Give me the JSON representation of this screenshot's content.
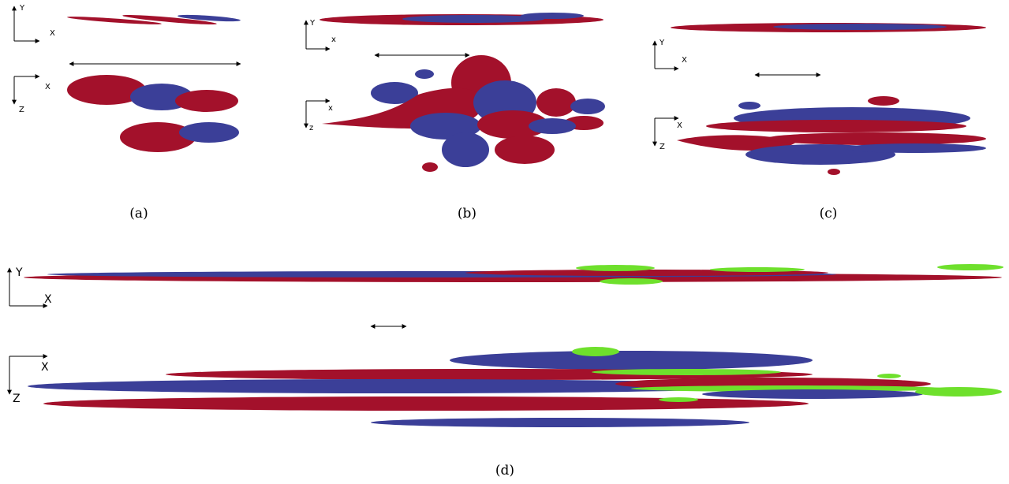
{
  "panels": [
    {
      "label": "(a)",
      "side_view": {
        "up": "Y",
        "right": "X"
      },
      "top_view": {
        "right": "X",
        "down": "Z"
      }
    },
    {
      "label": "(b)",
      "side_view": {
        "up": "Y",
        "right": "x"
      },
      "top_view": {
        "right": "x",
        "down": "z"
      }
    },
    {
      "label": "(c)",
      "side_view": {
        "up": "Y",
        "right": "X"
      },
      "top_view": {
        "right": "X",
        "down": "Z"
      }
    },
    {
      "label": "(d)",
      "side_view": {
        "up": "Y",
        "right": "X"
      },
      "top_view": {
        "right": "X",
        "down": "Z"
      }
    }
  ]
}
